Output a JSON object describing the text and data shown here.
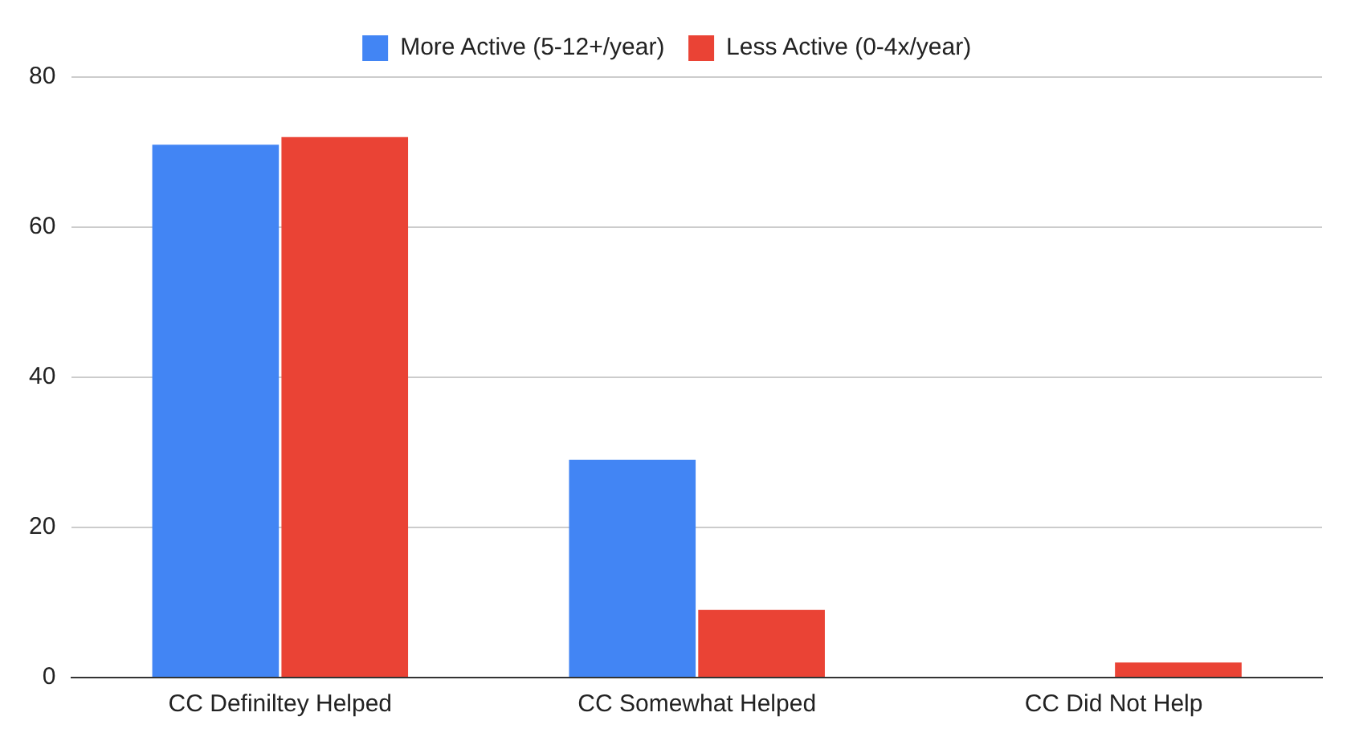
{
  "chart_data": {
    "type": "bar",
    "categories": [
      "CC Definiltey Helped",
      "CC Somewhat Helped",
      "CC Did Not Help"
    ],
    "series": [
      {
        "name": "More Active (5-12+/year)",
        "color": "#4285f4",
        "values": [
          71,
          29,
          0
        ]
      },
      {
        "name": "Less Active (0-4x/year)",
        "color": "#ea4335",
        "values": [
          72,
          9,
          2
        ]
      }
    ],
    "ylim": [
      0,
      80
    ],
    "yticks": [
      0,
      20,
      40,
      60,
      80
    ],
    "grid": "y",
    "legend": "top"
  }
}
